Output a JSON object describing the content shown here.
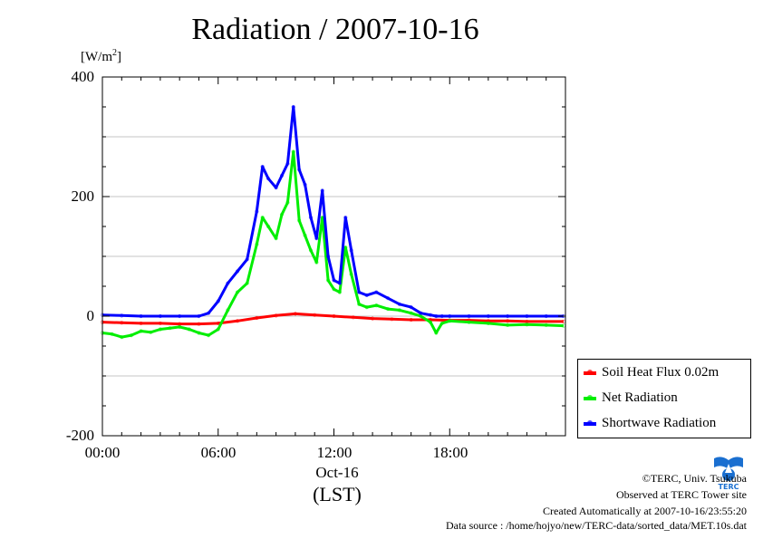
{
  "title": "Radiation / 2007-10-16",
  "unit_label": "[W/m",
  "unit_sup": "2",
  "unit_close": "]",
  "y_ticks": [
    "400",
    "200",
    "0",
    "-200"
  ],
  "x_ticks": [
    "00:00",
    "06:00",
    "12:00",
    "18:00"
  ],
  "x_date": "Oct-16",
  "x_zone": "(LST)",
  "legend": [
    {
      "name": "Soil Heat Flux 0.02m",
      "color": "#ff0000"
    },
    {
      "name": "Net Radiation",
      "color": "#00ee00"
    },
    {
      "name": "Shortwave Radiation",
      "color": "#0000ff"
    }
  ],
  "footer": {
    "copyright": "©TERC, Univ. Tsukuba",
    "observed": "Observed at TERC Tower site",
    "created": "Created Automatically at 2007-10-16/23:55:20",
    "source": "Data source : /home/hojyo/new/TERC-data/sorted_data/MET.10s.dat"
  },
  "logo_text": "TERC",
  "chart_data": {
    "type": "line",
    "title": "Radiation / 2007-10-16",
    "ylabel": "[W/m2]",
    "xlabel": "Oct-16 (LST)",
    "ylim": [
      -200,
      400
    ],
    "xlim": [
      0,
      24
    ],
    "grid": true,
    "legend_position": "bottom-right, outside plot",
    "series": [
      {
        "name": "Soil Heat Flux 0.02m",
        "color": "#ff0000",
        "x": [
          0,
          1,
          2,
          3,
          4,
          5,
          6,
          7,
          8,
          9,
          10,
          11,
          12,
          13,
          14,
          15,
          16,
          17,
          18,
          19,
          20,
          21,
          22,
          23.9
        ],
        "y": [
          -10,
          -11,
          -12,
          -12,
          -13,
          -13,
          -12,
          -8,
          -3,
          1,
          4,
          2,
          0,
          -2,
          -4,
          -5,
          -6,
          -6,
          -7,
          -7,
          -8,
          -8,
          -9,
          -9
        ]
      },
      {
        "name": "Net Radiation",
        "color": "#00ee00",
        "x": [
          0,
          0.5,
          1,
          1.5,
          2,
          2.5,
          3,
          3.5,
          4,
          4.5,
          5,
          5.5,
          6,
          6.5,
          7,
          7.5,
          8,
          8.3,
          8.6,
          9,
          9.3,
          9.6,
          9.9,
          10.2,
          10.5,
          10.8,
          11.1,
          11.4,
          11.7,
          12,
          12.3,
          12.6,
          12.9,
          13.3,
          13.7,
          14.2,
          14.8,
          15.4,
          16,
          16.5,
          17,
          17.3,
          17.6,
          18,
          19,
          20,
          21,
          22,
          23,
          23.9
        ],
        "y": [
          -28,
          -30,
          -35,
          -32,
          -25,
          -27,
          -22,
          -20,
          -18,
          -22,
          -28,
          -32,
          -22,
          10,
          40,
          55,
          120,
          165,
          150,
          130,
          170,
          190,
          275,
          160,
          135,
          110,
          90,
          165,
          60,
          45,
          40,
          115,
          70,
          20,
          15,
          18,
          12,
          10,
          5,
          0,
          -10,
          -28,
          -12,
          -8,
          -10,
          -12,
          -15,
          -14,
          -15,
          -16
        ]
      },
      {
        "name": "Shortwave Radiation",
        "color": "#0000ff",
        "x": [
          0,
          1,
          2,
          3,
          4,
          5,
          5.5,
          6,
          6.5,
          7,
          7.5,
          8,
          8.3,
          8.6,
          9,
          9.3,
          9.6,
          9.9,
          10.2,
          10.5,
          10.8,
          11.1,
          11.4,
          11.7,
          12,
          12.3,
          12.6,
          12.9,
          13.3,
          13.7,
          14.2,
          14.8,
          15.4,
          16,
          16.5,
          17,
          17.3,
          17.6,
          18,
          19,
          20,
          21,
          22,
          23,
          23.9
        ],
        "y": [
          2,
          1,
          0,
          0,
          0,
          0,
          5,
          25,
          55,
          75,
          95,
          175,
          250,
          230,
          215,
          235,
          255,
          350,
          245,
          220,
          165,
          130,
          210,
          100,
          60,
          55,
          165,
          110,
          40,
          35,
          40,
          30,
          20,
          15,
          5,
          2,
          0,
          0,
          0,
          0,
          0,
          0,
          0,
          0,
          0
        ]
      }
    ]
  }
}
